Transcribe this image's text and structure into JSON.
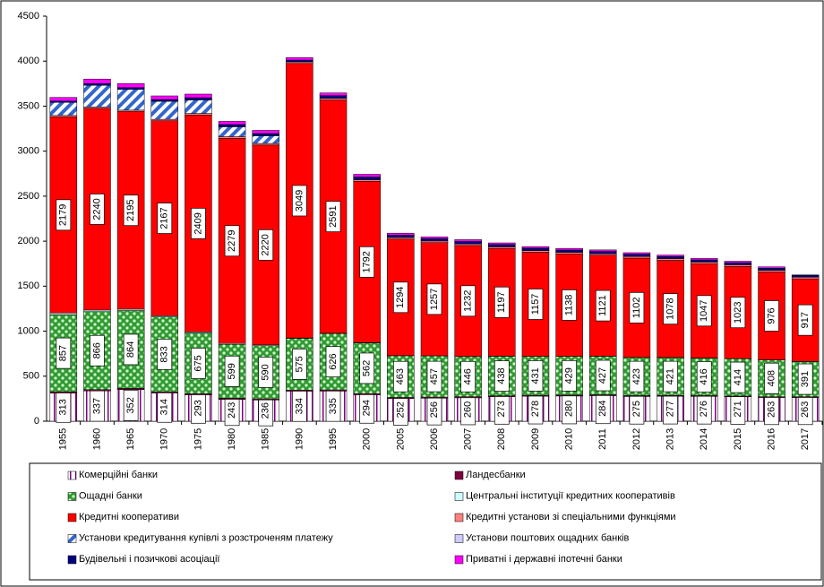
{
  "chart_data": {
    "type": "stacked_bar",
    "categories": [
      "1955",
      "1960",
      "1965",
      "1970",
      "1975",
      "1980",
      "1985",
      "1990",
      "1995",
      "2000",
      "2005",
      "2006",
      "2007",
      "2008",
      "2009",
      "2010",
      "2011",
      "2012",
      "2013",
      "2014",
      "2015",
      "2016",
      "2017"
    ],
    "ylim": [
      0,
      4500
    ],
    "yticks": [
      0,
      500,
      1000,
      1500,
      2000,
      2500,
      3000,
      3500,
      4000,
      4500
    ],
    "series": [
      {
        "name": "Комерційні банки",
        "color": "#800080",
        "pattern": "white-dots",
        "labeled": true,
        "values": [
          313,
          337,
          352,
          314,
          293,
          243,
          236,
          334,
          335,
          294,
          252,
          256,
          260,
          273,
          278,
          280,
          284,
          275,
          277,
          276,
          271,
          263,
          263
        ]
      },
      {
        "name": "Ландесбанки",
        "color": "#800040",
        "values": [
          14,
          14,
          13,
          12,
          12,
          12,
          12,
          12,
          13,
          13,
          12,
          12,
          12,
          10,
          10,
          10,
          10,
          10,
          9,
          9,
          9,
          9,
          9
        ]
      },
      {
        "name": "Ощадні банки",
        "color": "#339933",
        "pattern": "green-dots",
        "labeled": true,
        "values": [
          857,
          866,
          864,
          833,
          675,
          599,
          590,
          575,
          626,
          562,
          463,
          457,
          446,
          438,
          431,
          429,
          427,
          423,
          421,
          416,
          414,
          408,
          391
        ]
      },
      {
        "name": "Центральні інституції кредитних кооперативів",
        "color": "#ccffff",
        "values": [
          18,
          18,
          16,
          12,
          12,
          10,
          10,
          4,
          4,
          4,
          2,
          2,
          2,
          2,
          2,
          2,
          2,
          2,
          2,
          2,
          2,
          2,
          2
        ]
      },
      {
        "name": "Кредитні кооперативи",
        "color": "#ff0000",
        "labeled": true,
        "values": [
          2179,
          2240,
          2195,
          2167,
          2409,
          2279,
          2220,
          3049,
          2591,
          1792,
          1294,
          1257,
          1232,
          1197,
          1157,
          1138,
          1121,
          1102,
          1078,
          1047,
          1023,
          976,
          917
        ]
      },
      {
        "name": "Кредитні установи зі спеціальними функціями",
        "color": "#ff8080",
        "values": [
          16,
          16,
          16,
          16,
          18,
          18,
          18,
          18,
          18,
          18,
          18,
          18,
          17,
          17,
          17,
          17,
          17,
          18,
          18,
          18,
          18,
          18,
          18
        ]
      },
      {
        "name": "Установи кредитування купівлі з розстроченям платежу",
        "color": "#3366cc",
        "pattern": "hatch",
        "values": [
          145,
          240,
          230,
          200,
          150,
          110,
          85,
          0,
          0,
          0,
          0,
          0,
          0,
          0,
          0,
          0,
          0,
          0,
          0,
          0,
          0,
          0,
          0
        ]
      },
      {
        "name": "Установи поштових ощадних банків",
        "color": "#ccccff",
        "values": [
          0,
          0,
          0,
          0,
          0,
          0,
          0,
          0,
          0,
          0,
          0,
          0,
          0,
          0,
          0,
          0,
          0,
          0,
          0,
          0,
          0,
          0,
          0
        ]
      },
      {
        "name": "Будівельні і позичкові асоціації",
        "color": "#000080",
        "values": [
          15,
          20,
          20,
          20,
          25,
          25,
          25,
          20,
          30,
          30,
          26,
          26,
          28,
          26,
          27,
          26,
          25,
          25,
          24,
          24,
          24,
          24,
          23
        ]
      },
      {
        "name": "Приватні і державні іпотечні банки",
        "color": "#ff00ff",
        "values": [
          40,
          50,
          45,
          40,
          40,
          35,
          35,
          28,
          30,
          30,
          22,
          20,
          20,
          18,
          18,
          18,
          17,
          17,
          17,
          16,
          16,
          15,
          2
        ]
      }
    ]
  }
}
